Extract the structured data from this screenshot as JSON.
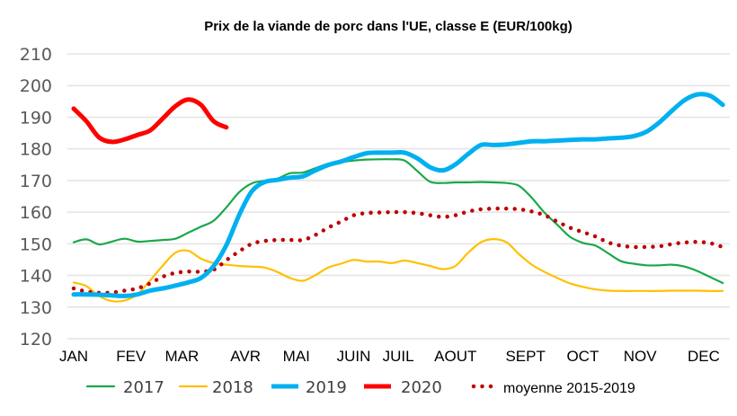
{
  "chart_data": {
    "type": "line",
    "title": "Prix de la viande de porc dans l'UE, classe E (EUR/100kg)",
    "xlabel": "",
    "ylabel": "",
    "ylim": [
      120,
      210
    ],
    "yticks": [
      120,
      130,
      140,
      150,
      160,
      170,
      180,
      190,
      200,
      210
    ],
    "grid": true,
    "legend_position": "bottom",
    "x_unit": "week",
    "x_tick_labels": [
      {
        "label": "JAN",
        "week": 1
      },
      {
        "label": "FEV",
        "week": 5.5
      },
      {
        "label": "MAR",
        "week": 9.5
      },
      {
        "label": "AVR",
        "week": 14.5
      },
      {
        "label": "MAI",
        "week": 18.5
      },
      {
        "label": "JUIN",
        "week": 23
      },
      {
        "label": "JUIL",
        "week": 26.5
      },
      {
        "label": "AOUT",
        "week": 31
      },
      {
        "label": "SEPT",
        "week": 36.5
      },
      {
        "label": "OCT",
        "week": 41
      },
      {
        "label": "NOV",
        "week": 45.5
      },
      {
        "label": "DEC",
        "week": 50.5
      }
    ],
    "series": [
      {
        "name": "2017",
        "color": "#1aa84a",
        "style": "solid-thin",
        "values": [
          150.5,
          151.4,
          149.8,
          150.7,
          151.6,
          150.7,
          150.9,
          151.2,
          151.6,
          153.5,
          155.4,
          157.3,
          161.5,
          166.3,
          169.1,
          169.9,
          170.6,
          172.3,
          172.5,
          173.9,
          175.3,
          175.8,
          176.3,
          176.6,
          176.7,
          176.7,
          176.3,
          173,
          169.6,
          169.2,
          169.4,
          169.4,
          169.5,
          169.4,
          169.2,
          168.3,
          164.5,
          159.8,
          156,
          152.2,
          150.3,
          149.4,
          147,
          144.5,
          143.7,
          143.2,
          143.2,
          143.4,
          142.8,
          141.4,
          139.5,
          137.6
        ]
      },
      {
        "name": "2018",
        "color": "#ffc000",
        "style": "solid-thin",
        "values": [
          137.8,
          136.6,
          133.5,
          131.9,
          132.1,
          134,
          138.4,
          143.1,
          147.2,
          147.8,
          145.3,
          143.9,
          143.4,
          143,
          142.8,
          142.5,
          141.1,
          139.2,
          138.3,
          140.1,
          142.5,
          143.7,
          144.9,
          144.4,
          144.4,
          143.9,
          144.7,
          143.9,
          143,
          142,
          143,
          147.2,
          150.5,
          151.5,
          150.5,
          146.7,
          143.4,
          141.1,
          139.2,
          137.5,
          136.4,
          135.6,
          135.2,
          135.1,
          135.1,
          135.1,
          135.1,
          135.2,
          135.2,
          135.2,
          135.1,
          135.1
        ]
      },
      {
        "name": "2019",
        "color": "#00b0f0",
        "style": "solid-thick",
        "values": [
          134,
          134,
          133.9,
          133.7,
          133.5,
          134,
          135.2,
          135.9,
          136.8,
          137.8,
          139.2,
          143,
          149.6,
          159.1,
          166.6,
          169.5,
          170.2,
          170.9,
          171.3,
          173.2,
          174.9,
          176,
          177.4,
          178.6,
          178.8,
          178.8,
          178.8,
          177,
          174.2,
          173.2,
          175.1,
          178.4,
          181.2,
          181.2,
          181.4,
          181.9,
          182.4,
          182.4,
          182.6,
          182.8,
          183,
          183,
          183.3,
          183.5,
          184,
          185.4,
          188.3,
          192,
          195.4,
          197.2,
          196.8,
          193.9
        ]
      },
      {
        "name": "2020",
        "color": "#ff0000",
        "style": "solid-thick",
        "values": [
          192.7,
          188.7,
          183.6,
          182.2,
          183,
          184.4,
          185.8,
          189.6,
          193.5,
          195.6,
          193.9,
          188.7,
          186.8
        ]
      },
      {
        "name": "moyenne 2015-2019",
        "color": "#c00000",
        "style": "dotted",
        "values": [
          135.9,
          134.9,
          134.5,
          134.6,
          135.2,
          135.9,
          137.5,
          139.6,
          140.8,
          141.2,
          141.2,
          141.8,
          144.8,
          147.6,
          150,
          150.9,
          151.2,
          151.2,
          151.2,
          152.8,
          155.1,
          157,
          159,
          159.7,
          159.9,
          160,
          160,
          159.7,
          159,
          158.5,
          159,
          160.2,
          160.9,
          161.1,
          161.1,
          160.9,
          160.2,
          159,
          157,
          155.1,
          153.7,
          152.3,
          150.4,
          149.4,
          149,
          149,
          149.2,
          149.9,
          150.4,
          150.6,
          150.2,
          149
        ]
      }
    ]
  }
}
